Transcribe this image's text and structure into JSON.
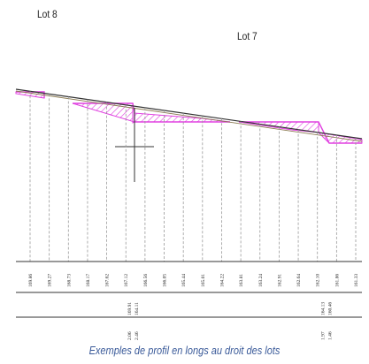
{
  "labels": {
    "lot_left": "Lot 8",
    "lot_right": "Lot 7",
    "caption": "Exemples de profil en longs au droit des lots"
  },
  "colors": {
    "terrain": "#333333",
    "hatch": "#e040e0",
    "grid": "#999999",
    "caption": "#3a5a99"
  },
  "profile": {
    "elevation_labels": [
      "169.86",
      "169.27",
      "168.73",
      "168.17",
      "167.62",
      "167.12",
      "166.56",
      "166.05",
      "165.44",
      "165.01",
      "164.22",
      "163.81",
      "163.24",
      "162.91",
      "162.64",
      "162.10",
      "161.86",
      "161.33"
    ],
    "lot8_annotations": {
      "row1": [
        "169.91",
        "164.11"
      ],
      "row2": [
        "2.06",
        "2.46"
      ]
    },
    "lot7_annotations": {
      "row1": [
        "164.13",
        "160.46"
      ],
      "row2": [
        "1.97",
        "1.46"
      ]
    }
  }
}
